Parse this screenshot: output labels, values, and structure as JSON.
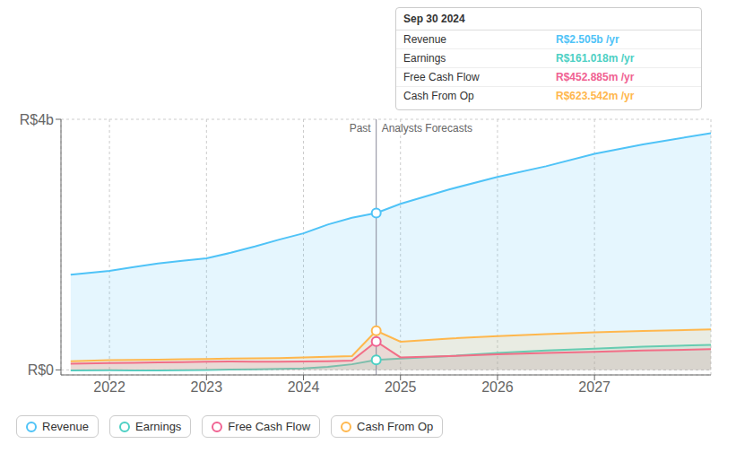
{
  "chart_data": {
    "type": "area",
    "x": [
      2021.6,
      2022,
      2022.25,
      2022.5,
      2022.75,
      2023,
      2023.25,
      2023.5,
      2023.75,
      2024,
      2024.25,
      2024.5,
      2024.75,
      2025,
      2025.5,
      2026,
      2026.5,
      2027,
      2027.5,
      2028.2
    ],
    "series": [
      {
        "name": "Revenue",
        "color": "#4fc3f7",
        "values": [
          1520000000,
          1580000000,
          1640000000,
          1700000000,
          1740000000,
          1780000000,
          1870000000,
          1970000000,
          2080000000,
          2180000000,
          2320000000,
          2430000000,
          2505000000,
          2650000000,
          2880000000,
          3080000000,
          3250000000,
          3450000000,
          3600000000,
          3780000000
        ]
      },
      {
        "name": "Earnings",
        "color": "#4dd0c4",
        "values": [
          -10000000,
          -5000000,
          -8000000,
          -10000000,
          -5000000,
          0,
          5000000,
          10000000,
          15000000,
          25000000,
          50000000,
          90000000,
          161000000,
          180000000,
          220000000,
          270000000,
          310000000,
          340000000,
          370000000,
          400000000
        ]
      },
      {
        "name": "Free Cash Flow",
        "color": "#f06292",
        "values": [
          100000000,
          110000000,
          115000000,
          120000000,
          125000000,
          130000000,
          135000000,
          130000000,
          130000000,
          135000000,
          140000000,
          150000000,
          453000000,
          200000000,
          220000000,
          250000000,
          270000000,
          290000000,
          310000000,
          330000000
        ]
      },
      {
        "name": "Cash From Op",
        "color": "#ffb74d",
        "values": [
          140000000,
          155000000,
          160000000,
          165000000,
          170000000,
          175000000,
          180000000,
          185000000,
          190000000,
          200000000,
          210000000,
          220000000,
          624000000,
          450000000,
          500000000,
          540000000,
          570000000,
          600000000,
          620000000,
          645000000
        ]
      }
    ],
    "xlim": [
      2021.5,
      2028.2
    ],
    "xticks": [
      2022,
      2023,
      2024,
      2025,
      2026,
      2027
    ],
    "ylim": [
      -80000000,
      4000000000
    ],
    "yticks": [
      {
        "value": 0,
        "label": "R$0"
      },
      {
        "value": 4000000000,
        "label": "R$4b"
      }
    ],
    "grid": true,
    "legend": "bottom",
    "divider": {
      "x": 2024.75,
      "left_label": "Past",
      "right_label": "Analysts Forecasts"
    },
    "tooltip": {
      "title": "Sep 30 2024",
      "rows": [
        "R$2.505b /yr",
        "R$161.018m /yr",
        "R$452.885m /yr",
        "R$623.542m /yr"
      ]
    }
  }
}
